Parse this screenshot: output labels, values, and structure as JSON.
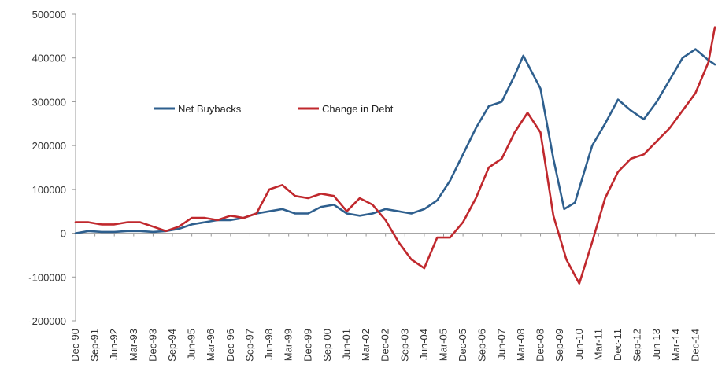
{
  "chart_data": {
    "type": "line",
    "title": "",
    "xlabel": "",
    "ylabel": "",
    "ylim": [
      -200000,
      500000
    ],
    "y_ticks": [
      500000,
      400000,
      300000,
      200000,
      100000,
      0,
      -100000,
      -200000
    ],
    "x_tick_labels": [
      "Dec-90",
      "Sep-91",
      "Jun-92",
      "Mar-93",
      "Dec-93",
      "Sep-94",
      "Jun-95",
      "Mar-96",
      "Dec-96",
      "Sep-97",
      "Jun-98",
      "Mar-99",
      "Dec-99",
      "Sep-00",
      "Jun-01",
      "Mar-02",
      "Dec-02",
      "Sep-03",
      "Jun-04",
      "Mar-05",
      "Dec-05",
      "Sep-06",
      "Jun-07",
      "Mar-08",
      "Dec-08",
      "Sep-09",
      "Jun-10",
      "Mar-11",
      "Dec-11",
      "Sep-12",
      "Jun-13",
      "Mar-14",
      "Dec-14"
    ],
    "x_range": [
      "Dec-90",
      "Sep-15"
    ],
    "grid": false,
    "legend_position": "upper-left-inside",
    "series": [
      {
        "name": "Net Buybacks",
        "color": "#2e5f8e",
        "points": [
          [
            "Dec-90",
            0
          ],
          [
            "Jun-91",
            5000
          ],
          [
            "Dec-91",
            3000
          ],
          [
            "Jun-92",
            3000
          ],
          [
            "Dec-92",
            5000
          ],
          [
            "Jun-93",
            5000
          ],
          [
            "Dec-93",
            3000
          ],
          [
            "Jun-94",
            5000
          ],
          [
            "Dec-94",
            10000
          ],
          [
            "Jun-95",
            20000
          ],
          [
            "Dec-95",
            25000
          ],
          [
            "Jun-96",
            30000
          ],
          [
            "Dec-96",
            30000
          ],
          [
            "Jun-97",
            35000
          ],
          [
            "Dec-97",
            45000
          ],
          [
            "Jun-98",
            50000
          ],
          [
            "Dec-98",
            55000
          ],
          [
            "Jun-99",
            45000
          ],
          [
            "Dec-99",
            45000
          ],
          [
            "Jun-00",
            60000
          ],
          [
            "Dec-00",
            65000
          ],
          [
            "Jun-01",
            45000
          ],
          [
            "Dec-01",
            40000
          ],
          [
            "Jun-02",
            45000
          ],
          [
            "Dec-02",
            55000
          ],
          [
            "Jun-03",
            50000
          ],
          [
            "Dec-03",
            45000
          ],
          [
            "Jun-04",
            55000
          ],
          [
            "Dec-04",
            75000
          ],
          [
            "Jun-05",
            120000
          ],
          [
            "Dec-05",
            180000
          ],
          [
            "Jun-06",
            240000
          ],
          [
            "Dec-06",
            290000
          ],
          [
            "Jun-07",
            300000
          ],
          [
            "Dec-07",
            360000
          ],
          [
            "Apr-08",
            405000
          ],
          [
            "Dec-08",
            330000
          ],
          [
            "Jun-09",
            170000
          ],
          [
            "Nov-09",
            55000
          ],
          [
            "Apr-10",
            70000
          ],
          [
            "Dec-10",
            200000
          ],
          [
            "Jun-11",
            250000
          ],
          [
            "Dec-11",
            305000
          ],
          [
            "Jun-12",
            280000
          ],
          [
            "Dec-12",
            260000
          ],
          [
            "Jun-13",
            300000
          ],
          [
            "Dec-13",
            350000
          ],
          [
            "Jun-14",
            400000
          ],
          [
            "Dec-14",
            420000
          ],
          [
            "Jun-15",
            395000
          ],
          [
            "Sep-15",
            385000
          ]
        ]
      },
      {
        "name": "Change in Debt",
        "color": "#c0282d",
        "points": [
          [
            "Dec-90",
            25000
          ],
          [
            "Jun-91",
            25000
          ],
          [
            "Dec-91",
            20000
          ],
          [
            "Jun-92",
            20000
          ],
          [
            "Dec-92",
            25000
          ],
          [
            "Jun-93",
            25000
          ],
          [
            "Dec-93",
            15000
          ],
          [
            "Jun-94",
            5000
          ],
          [
            "Dec-94",
            15000
          ],
          [
            "Jun-95",
            35000
          ],
          [
            "Dec-95",
            35000
          ],
          [
            "Jun-96",
            30000
          ],
          [
            "Dec-96",
            40000
          ],
          [
            "Jun-97",
            35000
          ],
          [
            "Dec-97",
            45000
          ],
          [
            "Jun-98",
            100000
          ],
          [
            "Dec-98",
            110000
          ],
          [
            "Jun-99",
            85000
          ],
          [
            "Dec-99",
            80000
          ],
          [
            "Jun-00",
            90000
          ],
          [
            "Dec-00",
            85000
          ],
          [
            "Jun-01",
            50000
          ],
          [
            "Dec-01",
            80000
          ],
          [
            "Jun-02",
            65000
          ],
          [
            "Dec-02",
            30000
          ],
          [
            "Jun-03",
            -20000
          ],
          [
            "Dec-03",
            -60000
          ],
          [
            "Jun-04",
            -80000
          ],
          [
            "Dec-04",
            -10000
          ],
          [
            "Jun-05",
            -10000
          ],
          [
            "Dec-05",
            25000
          ],
          [
            "Jun-06",
            80000
          ],
          [
            "Dec-06",
            150000
          ],
          [
            "Jun-07",
            170000
          ],
          [
            "Dec-07",
            230000
          ],
          [
            "Jun-08",
            275000
          ],
          [
            "Dec-08",
            230000
          ],
          [
            "Jun-09",
            40000
          ],
          [
            "Dec-09",
            -60000
          ],
          [
            "Jun-10",
            -115000
          ],
          [
            "Dec-10",
            -20000
          ],
          [
            "Jun-11",
            80000
          ],
          [
            "Dec-11",
            140000
          ],
          [
            "Jun-12",
            170000
          ],
          [
            "Dec-12",
            180000
          ],
          [
            "Jun-13",
            210000
          ],
          [
            "Dec-13",
            240000
          ],
          [
            "Jun-14",
            280000
          ],
          [
            "Dec-14",
            320000
          ],
          [
            "Jun-15",
            390000
          ],
          [
            "Sep-15",
            470000
          ]
        ]
      }
    ]
  }
}
